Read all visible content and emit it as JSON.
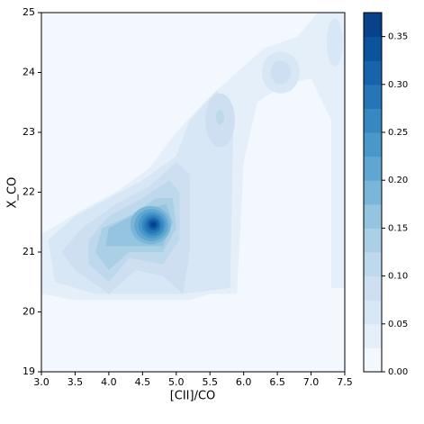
{
  "chart_data": {
    "type": "contourf",
    "xlabel": "[CII]/CO",
    "ylabel": "X_CO",
    "xlim": [
      3.0,
      7.5
    ],
    "ylim": [
      19,
      25
    ],
    "xticks": [
      {
        "value": 3.0,
        "label": "3.0"
      },
      {
        "value": 3.5,
        "label": "3.5"
      },
      {
        "value": 4.0,
        "label": "4.0"
      },
      {
        "value": 4.5,
        "label": "4.5"
      },
      {
        "value": 5.0,
        "label": "5.0"
      },
      {
        "value": 5.5,
        "label": "5.5"
      },
      {
        "value": 6.0,
        "label": "6.0"
      },
      {
        "value": 6.5,
        "label": "6.5"
      },
      {
        "value": 7.0,
        "label": "7.0"
      },
      {
        "value": 7.5,
        "label": "7.5"
      }
    ],
    "yticks": [
      19,
      20,
      21,
      22,
      23,
      24,
      25
    ],
    "levels": [
      0,
      0.025,
      0.05,
      0.075,
      0.1,
      0.125,
      0.15,
      0.175,
      0.2,
      0.225,
      0.25,
      0.275,
      0.3,
      0.325,
      0.35
    ],
    "colors": [
      "#f2f8fd",
      "#e4eff9",
      "#d8e7f5",
      "#cddff1",
      "#bed8ec",
      "#abd0e6",
      "#94c4df",
      "#7ab6d9",
      "#60a6d2",
      "#4a98c9",
      "#3787c0",
      "#2575b7",
      "#1764ab",
      "#0b539a",
      "#08428a"
    ],
    "colorbar_lim": [
      0,
      0.375
    ],
    "colorbar_ticks": [
      {
        "value": 0,
        "label": "0.00"
      },
      {
        "value": 0.05,
        "label": "0.05"
      },
      {
        "value": 0.1,
        "label": "0.10"
      },
      {
        "value": 0.15,
        "label": "0.15"
      },
      {
        "value": 0.2,
        "label": "0.20"
      },
      {
        "value": 0.25,
        "label": "0.25"
      },
      {
        "value": 0.3,
        "label": "0.30"
      },
      {
        "value": 0.35,
        "label": "0.35"
      }
    ],
    "regions": [
      {
        "level": 0.025,
        "x": [
          3.0,
          3.5,
          4.5,
          5.2,
          5.5,
          5.9,
          6.0,
          6.2,
          6.6,
          7.0,
          7.3,
          7.3,
          7.5,
          7.5,
          7.1,
          6.8,
          6.3,
          5.9,
          5.5,
          5.0,
          4.6,
          4.1,
          3.6,
          3.0
        ],
        "y": [
          20.3,
          20.2,
          20.2,
          20.2,
          20.3,
          20.3,
          22.5,
          23.5,
          23.8,
          23.9,
          23.2,
          20.4,
          20.4,
          25,
          25,
          24.6,
          24.4,
          24.0,
          23.6,
          23.0,
          22.4,
          22.0,
          21.7,
          21.3
        ]
      },
      {
        "level": 0.05,
        "x": [
          3.2,
          3.8,
          4.6,
          5.1,
          5.8,
          5.85,
          5.6,
          5.2,
          5.0,
          4.5,
          4.0,
          3.5,
          3.1
        ],
        "y": [
          20.5,
          20.3,
          20.3,
          20.3,
          20.4,
          23.3,
          23.7,
          23.2,
          22.6,
          22.2,
          21.9,
          21.6,
          21.2
        ]
      },
      {
        "level": 0.05,
        "cx": 6.55,
        "cy": 24.0,
        "rx": 0.28,
        "ry": 0.35
      },
      {
        "level": 0.05,
        "cx": 7.35,
        "cy": 24.5,
        "rx": 0.12,
        "ry": 0.4
      },
      {
        "level": 0.075,
        "x": [
          3.5,
          4.0,
          4.4,
          4.8,
          5.1,
          5.2,
          5.2,
          5.0,
          4.6,
          4.1,
          3.6,
          3.3
        ],
        "y": [
          20.7,
          20.3,
          20.7,
          20.6,
          20.3,
          21.0,
          22.3,
          22.5,
          22.1,
          21.8,
          21.4,
          21.0
        ]
      },
      {
        "level": 0.075,
        "cx": 5.65,
        "cy": 23.2,
        "rx": 0.22,
        "ry": 0.45
      },
      {
        "level": 0.075,
        "cx": 6.55,
        "cy": 24.0,
        "rx": 0.15,
        "ry": 0.2
      },
      {
        "level": 0.1,
        "x": [
          3.7,
          4.0,
          4.3,
          4.8,
          5.05,
          5.05,
          4.9,
          4.5,
          4.0,
          3.7
        ],
        "y": [
          20.8,
          20.5,
          20.9,
          20.8,
          21.2,
          22.0,
          22.2,
          21.9,
          21.6,
          21.2
        ]
      },
      {
        "level": 0.1,
        "cx": 5.65,
        "cy": 23.25,
        "rx": 0.06,
        "ry": 0.12
      },
      {
        "level": 0.125,
        "x": [
          3.8,
          4.0,
          4.3,
          4.8,
          5.0,
          4.95,
          4.7,
          4.3,
          3.9
        ],
        "y": [
          21.0,
          20.7,
          21.0,
          21.0,
          21.4,
          21.9,
          21.9,
          21.6,
          21.4
        ]
      },
      {
        "level": 0.15,
        "x": [
          3.95,
          4.3,
          4.8,
          4.95,
          4.85,
          4.5,
          4.0
        ],
        "y": [
          21.1,
          21.1,
          21.1,
          21.5,
          21.8,
          21.7,
          21.4
        ]
      },
      {
        "level": 0.175,
        "cx": 4.62,
        "cy": 21.45,
        "rx": 0.3,
        "ry": 0.32
      },
      {
        "level": 0.2,
        "cx": 4.63,
        "cy": 21.45,
        "rx": 0.25,
        "ry": 0.27
      },
      {
        "level": 0.225,
        "cx": 4.64,
        "cy": 21.45,
        "rx": 0.2,
        "ry": 0.22
      },
      {
        "level": 0.25,
        "cx": 4.65,
        "cy": 21.45,
        "rx": 0.16,
        "ry": 0.18
      },
      {
        "level": 0.275,
        "cx": 4.65,
        "cy": 21.45,
        "rx": 0.12,
        "ry": 0.14
      },
      {
        "level": 0.3,
        "cx": 4.66,
        "cy": 21.46,
        "rx": 0.09,
        "ry": 0.1
      },
      {
        "level": 0.325,
        "cx": 4.66,
        "cy": 21.46,
        "rx": 0.06,
        "ry": 0.07
      },
      {
        "level": 0.35,
        "cx": 4.66,
        "cy": 21.46,
        "rx": 0.035,
        "ry": 0.04
      }
    ]
  }
}
